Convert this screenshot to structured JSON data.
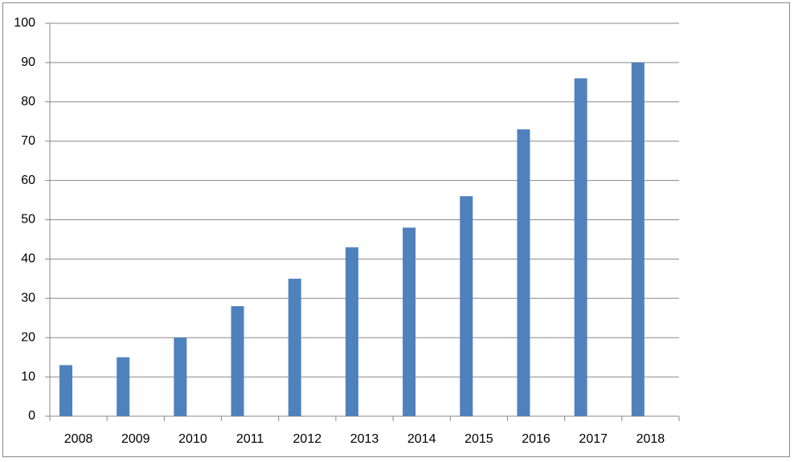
{
  "chart_data": {
    "type": "bar",
    "categories": [
      "2008",
      "2009",
      "2010",
      "2011",
      "2012",
      "2013",
      "2014",
      "2015",
      "2016",
      "2017",
      "2018"
    ],
    "values": [
      13,
      15,
      20,
      28,
      35,
      43,
      48,
      56,
      73,
      86,
      90
    ],
    "color": "#4f81bd",
    "ylim": [
      0,
      100
    ],
    "yticks": [
      0,
      10,
      20,
      30,
      40,
      50,
      60,
      70,
      80,
      90,
      100
    ],
    "grid": true
  }
}
